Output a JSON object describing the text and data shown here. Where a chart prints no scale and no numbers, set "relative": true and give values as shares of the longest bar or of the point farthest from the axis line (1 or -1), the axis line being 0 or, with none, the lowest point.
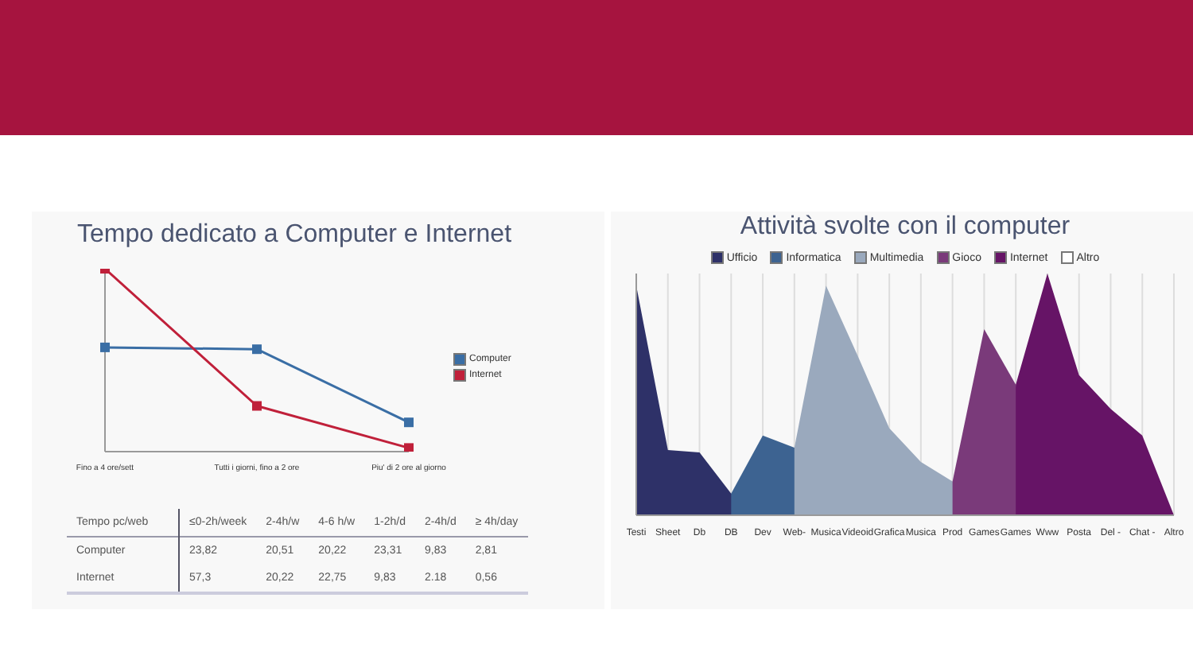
{
  "chart_data": [
    {
      "type": "line",
      "title": "Tempo dedicato a Computer e Internet",
      "relative": true,
      "categories": [
        "Fino a 4 ore/sett",
        "Tutti i giorni, fino a 2 ore",
        "Piu' di 2 ore al giorno"
      ],
      "series": [
        {
          "name": "Computer",
          "color": "#3a6ea5",
          "values": [
            0.57,
            0.56,
            0.16
          ]
        },
        {
          "name": "Internet",
          "color": "#c0203a",
          "values": [
            1,
            0.25,
            0.02
          ]
        }
      ],
      "marker": "square",
      "legend": "right",
      "grid": false
    },
    {
      "type": "other",
      "ylabel": "Tempo pc/web",
      "categories": [
        "≤0-2h/week",
        "2-4h/w",
        "4-6 h/w",
        "1-2h/d",
        "2-4h/d",
        "≥ 4h/day"
      ],
      "y_categories": [
        "Computer",
        "Internet"
      ],
      "cell_labels": [
        [
          "23,82",
          "20,51",
          "20,22",
          "23,31",
          "9,83",
          "2,81"
        ],
        [
          "57,3",
          "20,22",
          "22,75",
          "9,83",
          "2.18",
          "0,56"
        ]
      ]
    },
    {
      "type": "area",
      "title": "Attività svolte con il computer",
      "relative": true,
      "categories": [
        "Testi",
        "Sheet",
        "Db",
        "DB",
        "Dev",
        "Web-",
        "Musica",
        "Videoid",
        "Grafica",
        "Musica",
        "Prod",
        "Games",
        "Games",
        "Www",
        "Posta",
        "Del -",
        "Chat -",
        "Altro"
      ],
      "series": [
        {
          "name": "Ufficio",
          "color": "#2e3168",
          "values": [
            0.95,
            0.27,
            0.26,
            0.09,
            0,
            null,
            null,
            null,
            null,
            null,
            null,
            null,
            null,
            null,
            null,
            null,
            null,
            null
          ]
        },
        {
          "name": "Informatica",
          "color": "#3d6391",
          "values": [
            null,
            null,
            null,
            0.09,
            0.33,
            0.28,
            0,
            null,
            null,
            null,
            null,
            null,
            null,
            null,
            null,
            null,
            null,
            null
          ]
        },
        {
          "name": "Multimedia",
          "color": "#9aa9bd",
          "values": [
            null,
            null,
            null,
            null,
            null,
            0.28,
            0.95,
            0.66,
            0.36,
            0.22,
            0.14,
            0,
            null,
            null,
            null,
            null,
            null,
            null
          ]
        },
        {
          "name": "Gioco",
          "color": "#7a3a7a",
          "values": [
            null,
            null,
            null,
            null,
            null,
            null,
            null,
            null,
            null,
            null,
            0.14,
            0.77,
            0.54,
            0,
            null,
            null,
            null,
            null
          ]
        },
        {
          "name": "Internet",
          "color": "#661466",
          "values": [
            null,
            null,
            null,
            null,
            null,
            null,
            null,
            null,
            null,
            null,
            null,
            null,
            0.54,
            1,
            0.58,
            0.44,
            0.33,
            0
          ]
        },
        {
          "name": "Altro",
          "color": "#ffffff",
          "values": [
            null,
            null,
            null,
            null,
            null,
            null,
            null,
            null,
            null,
            null,
            null,
            null,
            null,
            null,
            null,
            null,
            null,
            null
          ]
        }
      ],
      "legend": "top",
      "grid": "x"
    }
  ]
}
